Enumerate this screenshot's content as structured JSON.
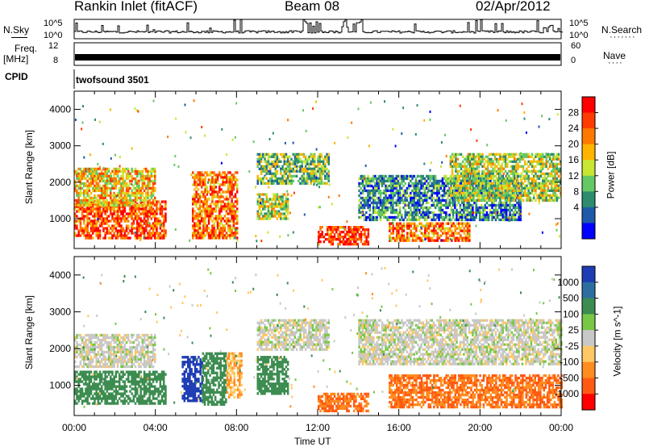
{
  "header": {
    "site": "Rankin Inlet (fitACF)",
    "beam": "Beam 08",
    "date": "02/Apr/2012"
  },
  "panels": {
    "nsky": {
      "label": "N.Sky",
      "ticks": [
        "10^5",
        "10^0"
      ],
      "right_label": "N.Search",
      "right_ticks": [
        "10^5",
        "10^0"
      ]
    },
    "freq": {
      "label_line1": "Freq.",
      "label_line2": "[MHz]",
      "ticks": [
        "12",
        "8"
      ],
      "right_label": "Nave",
      "right_ticks": [
        "60",
        "0"
      ]
    },
    "cpid": {
      "label": "CPID",
      "value": "twofsound 3501"
    }
  },
  "colorbars": {
    "power": {
      "label": "Power [dB]",
      "ticks": [
        "28",
        "24",
        "20",
        "16",
        "12",
        "8",
        "4"
      ],
      "colors": [
        "#ff0000",
        "#ff3c00",
        "#ff7800",
        "#ffb400",
        "#c8e632",
        "#64c864",
        "#2d8c6e",
        "#1e5aaa",
        "#0000ff"
      ]
    },
    "velocity": {
      "label": "Velocity [m s^-1]",
      "ticks": [
        "1000",
        "500",
        "100",
        "25",
        "-25",
        "-100",
        "-500",
        "-1000"
      ],
      "colors": [
        "#1e3cb4",
        "#2d6ea0",
        "#3c8c50",
        "#78c846",
        "#c8c8c8",
        "#ffc864",
        "#ff8c1e",
        "#ff5a14",
        "#ff0000"
      ]
    }
  },
  "chart_data": [
    {
      "type": "heatmap",
      "name": "power",
      "ylabel": "Slant Range [km]",
      "ylim": [
        180,
        4500
      ],
      "yticks": [
        1000,
        2000,
        3000,
        4000
      ],
      "xlim": [
        0,
        24
      ],
      "xticks": [
        "00:00",
        "04:00",
        "08:00",
        "12:00",
        "16:00",
        "20:00",
        "00:00"
      ],
      "regions": [
        {
          "t0": 0.0,
          "t1": 4.5,
          "r0": 500,
          "r1": 1500,
          "level": 24
        },
        {
          "t0": 0.0,
          "t1": 4.0,
          "r0": 1400,
          "r1": 2400,
          "level": 18
        },
        {
          "t0": 5.8,
          "t1": 8.0,
          "r0": 500,
          "r1": 2300,
          "level": 22
        },
        {
          "t0": 9.0,
          "t1": 10.5,
          "r0": 1000,
          "r1": 1700,
          "level": 14
        },
        {
          "t0": 9.0,
          "t1": 12.5,
          "r0": 2000,
          "r1": 2800,
          "level": 12
        },
        {
          "t0": 12.0,
          "t1": 14.5,
          "r0": 300,
          "r1": 800,
          "level": 26
        },
        {
          "t0": 15.5,
          "t1": 19.5,
          "r0": 400,
          "r1": 900,
          "level": 22
        },
        {
          "t0": 14.0,
          "t1": 22.0,
          "r0": 1000,
          "r1": 2200,
          "level": 8
        },
        {
          "t0": 18.5,
          "t1": 24.0,
          "r0": 1500,
          "r1": 2800,
          "level": 14
        }
      ]
    },
    {
      "type": "heatmap",
      "name": "velocity",
      "ylabel": "Slant Range [km]",
      "ylim": [
        180,
        4500
      ],
      "yticks": [
        1000,
        2000,
        3000,
        4000
      ],
      "xlim": [
        0,
        24
      ],
      "xticks": [
        "00:00",
        "04:00",
        "08:00",
        "12:00",
        "16:00",
        "20:00",
        "00:00"
      ],
      "xlabel": "Time UT",
      "regions": [
        {
          "t0": 0.0,
          "t1": 4.5,
          "r0": 500,
          "r1": 1400,
          "level": 100
        },
        {
          "t0": 0.0,
          "t1": 4.0,
          "r0": 1500,
          "r1": 2400,
          "level": 0
        },
        {
          "t0": 5.3,
          "t1": 6.3,
          "r0": 600,
          "r1": 1800,
          "level": 700
        },
        {
          "t0": 6.3,
          "t1": 7.5,
          "r0": 500,
          "r1": 1900,
          "level": 100
        },
        {
          "t0": 7.5,
          "t1": 8.2,
          "r0": 700,
          "r1": 1900,
          "level": -100
        },
        {
          "t0": 9.0,
          "t1": 10.5,
          "r0": 800,
          "r1": 1800,
          "level": 100
        },
        {
          "t0": 9.0,
          "t1": 12.5,
          "r0": 2000,
          "r1": 2800,
          "level": 0
        },
        {
          "t0": 12.0,
          "t1": 14.5,
          "r0": 300,
          "r1": 800,
          "level": -300
        },
        {
          "t0": 15.5,
          "t1": 24.0,
          "r0": 400,
          "r1": 1300,
          "level": -300
        },
        {
          "t0": 14.0,
          "t1": 24.0,
          "r0": 1600,
          "r1": 2800,
          "level": 0
        }
      ]
    }
  ]
}
